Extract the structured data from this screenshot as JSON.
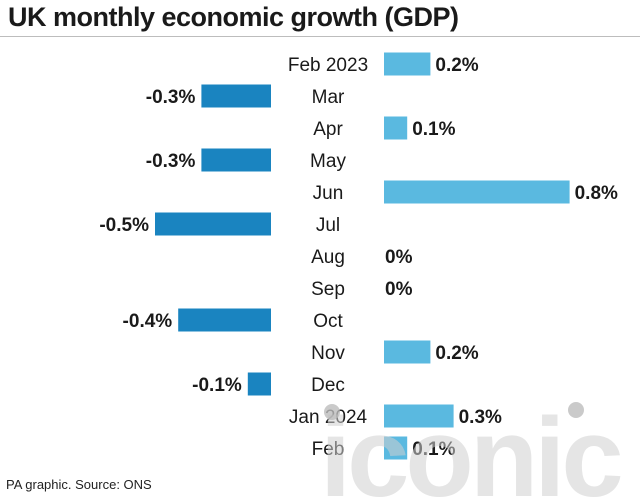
{
  "header": {
    "title": "UK monthly economic growth (GDP)"
  },
  "footer": {
    "source": "PA graphic. Source: ONS"
  },
  "watermark": {
    "text": "iconic"
  },
  "colors": {
    "positive": "#5ab9e0",
    "negative": "#1a84c0",
    "text": "#1a1a1a"
  },
  "chart_data": {
    "type": "bar",
    "orientation": "horizontal",
    "title": "UK monthly economic growth (GDP)",
    "categories": [
      "Feb 2023",
      "Mar",
      "Apr",
      "May",
      "Jun",
      "Jul",
      "Aug",
      "Sep",
      "Oct",
      "Nov",
      "Dec",
      "Jan 2024",
      "Feb"
    ],
    "values": [
      0.2,
      -0.3,
      0.1,
      -0.3,
      0.8,
      -0.5,
      0,
      0,
      -0.4,
      0.2,
      -0.1,
      0.3,
      0.1
    ],
    "data_labels": [
      "0.2%",
      "-0.3%",
      "0.1%",
      "-0.3%",
      "0.8%",
      "-0.5%",
      "0%",
      "0%",
      "-0.4%",
      "0.2%",
      "-0.1%",
      "0.3%",
      "0.1%"
    ],
    "unit": "%",
    "grid": false,
    "legend": "none"
  }
}
